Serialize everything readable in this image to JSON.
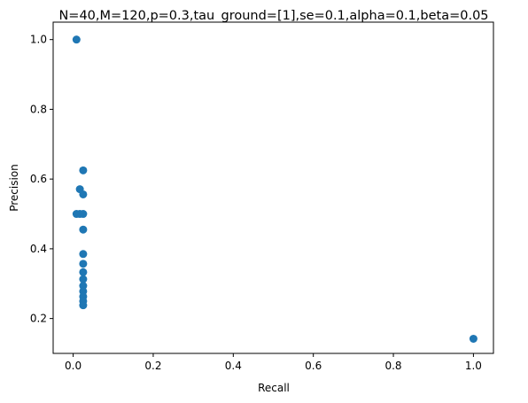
{
  "chart_data": {
    "type": "scatter",
    "title": "N=40,M=120,p=0.3,tau_ground=[1],se=0.1,alpha=0.1,beta=0.05",
    "xlabel": "Recall",
    "ylabel": "Precision",
    "xlim": [
      -0.05,
      1.05
    ],
    "ylim": [
      0.1,
      1.05
    ],
    "xticks": [
      0.0,
      0.2,
      0.4,
      0.6,
      0.8,
      1.0
    ],
    "xtick_labels": [
      "0.0",
      "0.2",
      "0.4",
      "0.6",
      "0.8",
      "1.0"
    ],
    "yticks": [
      0.2,
      0.4,
      0.6,
      0.8,
      1.0
    ],
    "ytick_labels": [
      "0.2",
      "0.4",
      "0.6",
      "0.8",
      "1.0"
    ],
    "grid": false,
    "marker_color": "#1f77b4",
    "points": [
      {
        "x": 0.0083,
        "y": 1.0
      },
      {
        "x": 0.0083,
        "y": 0.5
      },
      {
        "x": 0.0167,
        "y": 0.5
      },
      {
        "x": 0.0167,
        "y": 0.571
      },
      {
        "x": 0.025,
        "y": 0.625
      },
      {
        "x": 0.025,
        "y": 0.556
      },
      {
        "x": 0.025,
        "y": 0.5
      },
      {
        "x": 0.025,
        "y": 0.455
      },
      {
        "x": 0.025,
        "y": 0.385
      },
      {
        "x": 0.025,
        "y": 0.357
      },
      {
        "x": 0.025,
        "y": 0.333
      },
      {
        "x": 0.025,
        "y": 0.313
      },
      {
        "x": 0.025,
        "y": 0.294
      },
      {
        "x": 0.025,
        "y": 0.278
      },
      {
        "x": 0.025,
        "y": 0.263
      },
      {
        "x": 0.025,
        "y": 0.25
      },
      {
        "x": 0.025,
        "y": 0.238
      },
      {
        "x": 1.0,
        "y": 0.142
      }
    ]
  }
}
